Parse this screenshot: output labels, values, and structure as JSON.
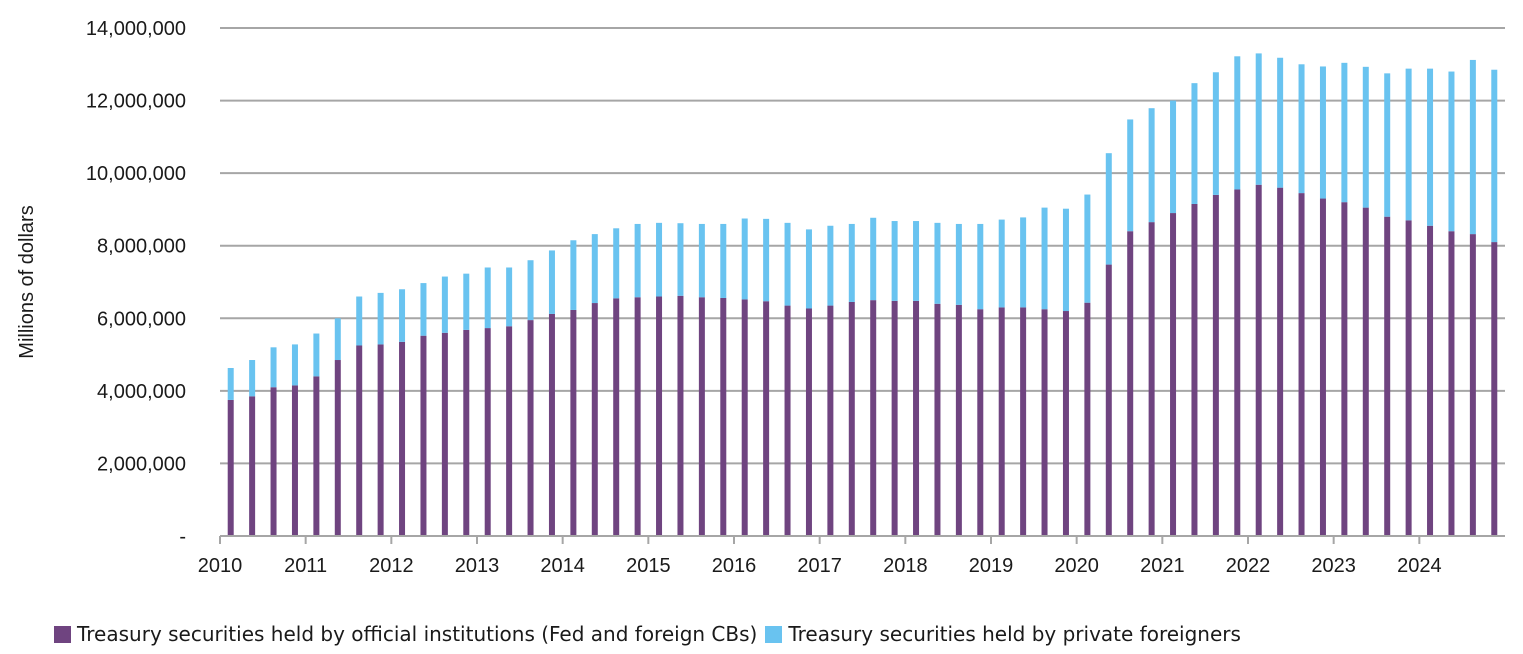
{
  "chart_data": {
    "type": "bar",
    "stacked": true,
    "xlabel": "",
    "ylabel": "Millions of dollars",
    "ylim": [
      0,
      14000000
    ],
    "yticks": [
      0,
      2000000,
      4000000,
      6000000,
      8000000,
      10000000,
      12000000,
      14000000
    ],
    "ytick_labels": [
      "-",
      "2,000,000",
      "4,000,000",
      "6,000,000",
      "8,000,000",
      "10,000,000",
      "12,000,000",
      "14,000,000"
    ],
    "x_tick_labels": [
      "2010",
      "2011",
      "2012",
      "2013",
      "2014",
      "2015",
      "2016",
      "2017",
      "2018",
      "2019",
      "2020",
      "2021",
      "2022",
      "2023",
      "2024"
    ],
    "categories": [
      "2010 Q1",
      "2010 Q2",
      "2010 Q3",
      "2010 Q4",
      "2011 Q1",
      "2011 Q2",
      "2011 Q3",
      "2011 Q4",
      "2012 Q1",
      "2012 Q2",
      "2012 Q3",
      "2012 Q4",
      "2013 Q1",
      "2013 Q2",
      "2013 Q3",
      "2013 Q4",
      "2014 Q1",
      "2014 Q2",
      "2014 Q3",
      "2014 Q4",
      "2015 Q1",
      "2015 Q2",
      "2015 Q3",
      "2015 Q4",
      "2016 Q1",
      "2016 Q2",
      "2016 Q3",
      "2016 Q4",
      "2017 Q1",
      "2017 Q2",
      "2017 Q3",
      "2017 Q4",
      "2018 Q1",
      "2018 Q2",
      "2018 Q3",
      "2018 Q4",
      "2019 Q1",
      "2019 Q2",
      "2019 Q3",
      "2019 Q4",
      "2020 Q1",
      "2020 Q2",
      "2020 Q3",
      "2020 Q4",
      "2021 Q1",
      "2021 Q2",
      "2021 Q3",
      "2021 Q4",
      "2022 Q1",
      "2022 Q2",
      "2022 Q3",
      "2022 Q4",
      "2023 Q1",
      "2023 Q2",
      "2023 Q3",
      "2023 Q4",
      "2024 Q1",
      "2024 Q2",
      "2024 Q3",
      "2024 Q4"
    ],
    "series": [
      {
        "name": "Treasury securities held by official institutions (Fed and foreign CBs)",
        "color": "#6f4480",
        "values": [
          3750000,
          3850000,
          4100000,
          4150000,
          4400000,
          4850000,
          5250000,
          5280000,
          5350000,
          5520000,
          5600000,
          5680000,
          5730000,
          5780000,
          5950000,
          6120000,
          6230000,
          6420000,
          6550000,
          6580000,
          6600000,
          6620000,
          6580000,
          6560000,
          6520000,
          6470000,
          6350000,
          6270000,
          6350000,
          6450000,
          6500000,
          6480000,
          6480000,
          6400000,
          6370000,
          6250000,
          6300000,
          6300000,
          6250000,
          6200000,
          6430000,
          7480000,
          8400000,
          8650000,
          8900000,
          9150000,
          9400000,
          9550000,
          9680000,
          9600000,
          9450000,
          9300000,
          9200000,
          9050000,
          8800000,
          8700000,
          8550000,
          8400000,
          8320000,
          8100000
        ]
      },
      {
        "name": "Treasury securities held by private foreigners",
        "color": "#69c3f0",
        "values": [
          880000,
          1000000,
          1100000,
          1130000,
          1180000,
          1150000,
          1350000,
          1420000,
          1450000,
          1450000,
          1550000,
          1550000,
          1670000,
          1620000,
          1650000,
          1750000,
          1920000,
          1900000,
          1930000,
          2020000,
          2030000,
          2000000,
          2020000,
          2040000,
          2230000,
          2270000,
          2280000,
          2180000,
          2200000,
          2150000,
          2270000,
          2200000,
          2200000,
          2230000,
          2230000,
          2350000,
          2420000,
          2480000,
          2800000,
          2820000,
          2980000,
          3070000,
          3080000,
          3140000,
          3100000,
          3330000,
          3380000,
          3670000,
          3620000,
          3580000,
          3550000,
          3640000,
          3840000,
          3880000,
          3950000,
          4180000,
          4330000,
          4400000,
          4800000,
          4750000
        ]
      }
    ],
    "grid": true,
    "legend_position": "bottom"
  }
}
